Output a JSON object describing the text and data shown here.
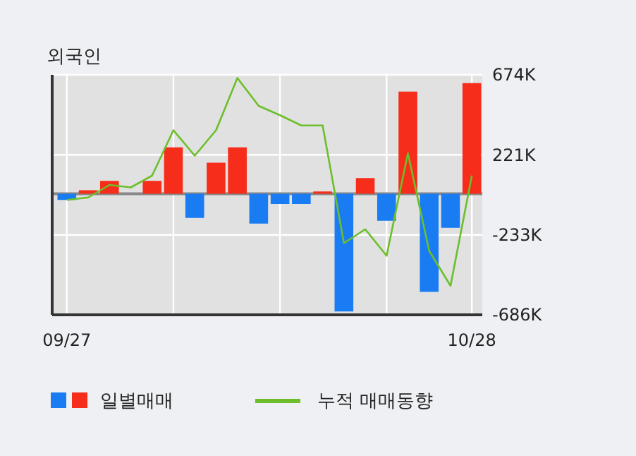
{
  "chart_data": {
    "type": "bar",
    "title": "외국인",
    "categories": [
      "09/27",
      null,
      null,
      null,
      null,
      null,
      null,
      null,
      null,
      null,
      null,
      null,
      null,
      null,
      null,
      null,
      null,
      null,
      null,
      "10/28"
    ],
    "series": [
      {
        "name": "일별매매",
        "colors": [
          "#1a7cf2",
          "#f52d1a",
          "#f52d1a",
          "#f52d1a",
          "#f52d1a",
          "#f52d1a",
          "#1a7cf2",
          "#f52d1a",
          "#f52d1a",
          "#1a7cf2",
          "#1a7cf2",
          "#1a7cf2",
          "#f52d1a",
          "#1a7cf2",
          "#f52d1a",
          "#1a7cf2",
          "#f52d1a",
          "#1a7cf2",
          "#1a7cf2",
          "#f52d1a"
        ],
        "values": [
          -35,
          20,
          73,
          0,
          73,
          263,
          -137,
          176,
          263,
          -169,
          -58,
          -58,
          13,
          -667,
          89,
          -153,
          579,
          -556,
          -193,
          627
        ]
      },
      {
        "name": "누적 매매동향",
        "type": "line",
        "color": "#6cbf2a",
        "values": [
          -35,
          -21,
          50,
          36,
          103,
          360,
          216,
          360,
          656,
          498,
          445,
          387,
          387,
          -280,
          -201,
          -351,
          229,
          -324,
          -521,
          103
        ]
      }
    ],
    "ylim": [
      -686,
      674
    ],
    "yticks": [
      {
        "value": 674,
        "label": "674K"
      },
      {
        "value": 221,
        "label": "221K"
      },
      {
        "value": -233,
        "label": "-233K"
      },
      {
        "value": -686,
        "label": "-686K"
      }
    ],
    "grid": true,
    "legend": "bottom"
  }
}
